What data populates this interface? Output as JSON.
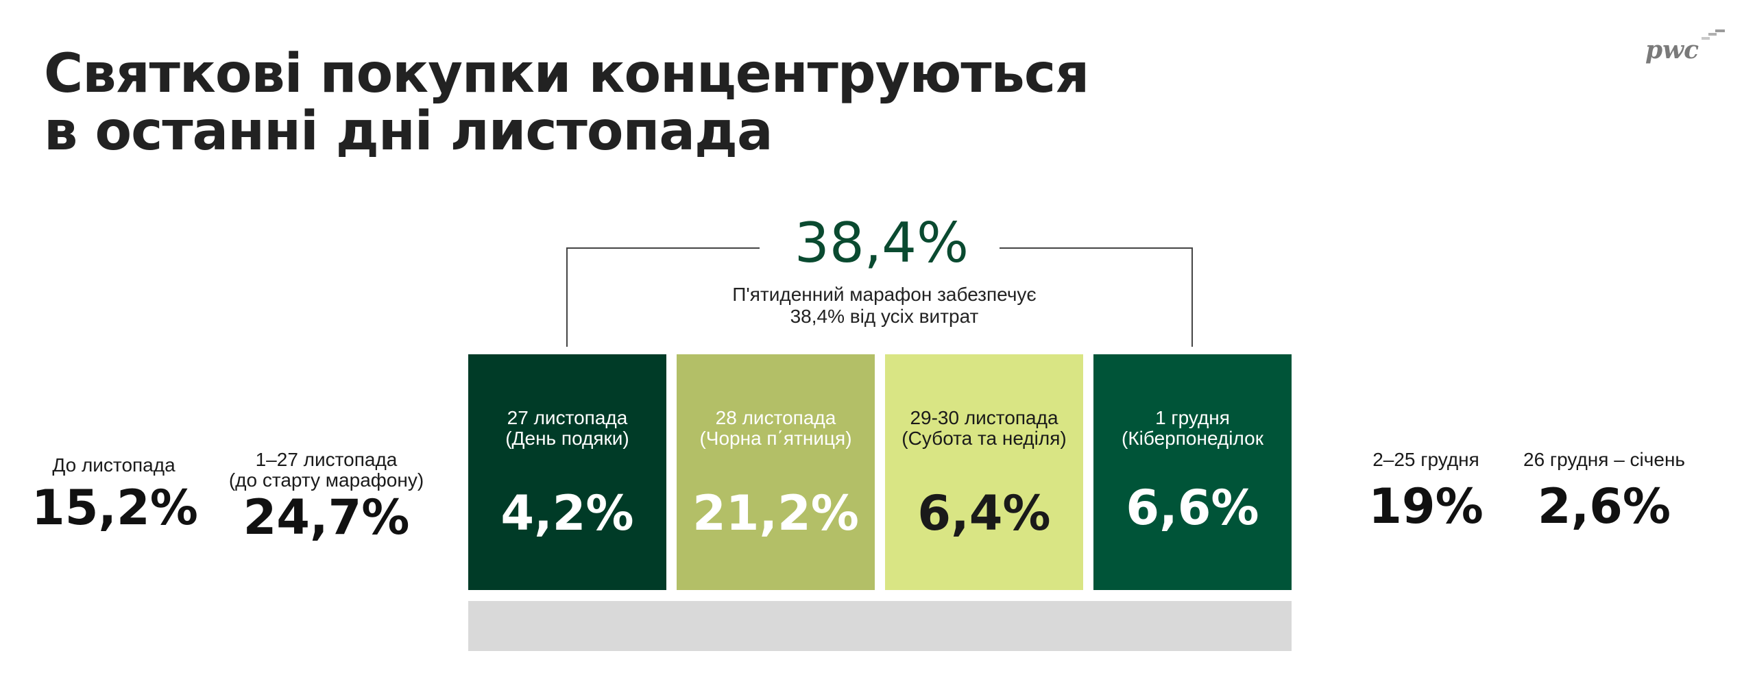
{
  "title": {
    "line1": "Святкові покупки концентруються",
    "line2": "в останні дні листопада"
  },
  "logo": {
    "text": "pwc"
  },
  "marathon": {
    "total": "38,4%",
    "note_line1": "П'ятиденний марафон забезпечує",
    "note_line2": "38,4% від усіх витрат"
  },
  "periods": [
    {
      "label_line1": "До листопада",
      "label_line2": "",
      "value": "15,2%"
    },
    {
      "label_line1": "1–27 листопада",
      "label_line2": "(до старту марафону)",
      "value": "24,7%"
    },
    {
      "label_line1": "27 листопада",
      "label_line2": "(День подяки)",
      "value": "4,2%",
      "color": "#003b27",
      "text_color": "#ffffff"
    },
    {
      "label_line1": "28 листопада",
      "label_line2": "(Чорна п΄ятниця)",
      "value": "21,2%",
      "color": "#b3bf67",
      "text_color": "#ffffff"
    },
    {
      "label_line1": "29-30 листопада",
      "label_line2": "(Субота та неділя)",
      "value": "6,4%",
      "color": "#d9e584",
      "text_color": "#1a1a1a"
    },
    {
      "label_line1": "1 грудня",
      "label_line2": "(Кіберпонеділок",
      "value": "6,6%",
      "color": "#005438",
      "text_color": "#ffffff"
    },
    {
      "label_line1": "2–25 грудня",
      "label_line2": "",
      "value": "19%"
    },
    {
      "label_line1": "26 грудня – січень",
      "label_line2": "",
      "value": "2,6%"
    }
  ],
  "colors": {
    "accent_dark_green": "#0a4a30",
    "base_grey": "#d9d9d9"
  }
}
